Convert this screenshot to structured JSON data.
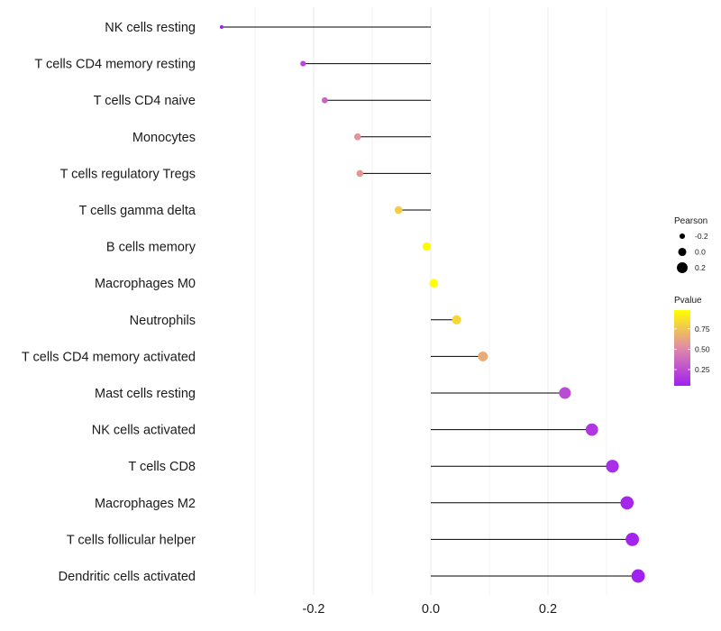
{
  "chart_data": {
    "type": "lollipop",
    "title": "",
    "xlabel": "",
    "ylabel": "",
    "xlim": [
      -0.36,
      0.36
    ],
    "xticks": [
      {
        "value": -0.2,
        "label": "-0.2"
      },
      {
        "value": 0.0,
        "label": "0.0"
      },
      {
        "value": 0.2,
        "label": "0.2"
      }
    ],
    "points": [
      {
        "category": "NK cells resting",
        "pearson": -0.357,
        "pvalue": 0.05
      },
      {
        "category": "T cells CD4 memory resting",
        "pearson": -0.218,
        "pvalue": 0.22
      },
      {
        "category": "T cells CD4 naive",
        "pearson": -0.181,
        "pvalue": 0.35
      },
      {
        "category": "Monocytes",
        "pearson": -0.125,
        "pvalue": 0.55
      },
      {
        "category": "T cells regulatory  Tregs",
        "pearson": -0.121,
        "pvalue": 0.57
      },
      {
        "category": "T cells gamma delta",
        "pearson": -0.055,
        "pvalue": 0.78
      },
      {
        "category": "B cells memory",
        "pearson": -0.007,
        "pvalue": 0.97
      },
      {
        "category": "Macrophages M0",
        "pearson": 0.005,
        "pvalue": 0.98
      },
      {
        "category": "Neutrophils",
        "pearson": 0.044,
        "pvalue": 0.82
      },
      {
        "category": "T cells CD4 memory activated",
        "pearson": 0.089,
        "pvalue": 0.65
      },
      {
        "category": "Mast cells resting",
        "pearson": 0.229,
        "pvalue": 0.24
      },
      {
        "category": "NK cells activated",
        "pearson": 0.275,
        "pvalue": 0.15
      },
      {
        "category": "T cells CD8",
        "pearson": 0.31,
        "pvalue": 0.11
      },
      {
        "category": "Macrophages M2",
        "pearson": 0.335,
        "pvalue": 0.08
      },
      {
        "category": "T cells follicular helper",
        "pearson": 0.344,
        "pvalue": 0.07
      },
      {
        "category": "Dendritic cells activated",
        "pearson": 0.354,
        "pvalue": 0.06
      }
    ],
    "legend_size": {
      "title": "Pearson",
      "entries": [
        {
          "value": -0.2,
          "label": "-0.2"
        },
        {
          "value": 0.0,
          "label": "0.0"
        },
        {
          "value": 0.2,
          "label": "0.2"
        }
      ]
    },
    "legend_color": {
      "title": "Pvalue",
      "range": [
        0.05,
        0.98
      ],
      "ticks": [
        {
          "value": 0.25,
          "label": "0.25"
        },
        {
          "value": 0.5,
          "label": "0.50"
        },
        {
          "value": 0.75,
          "label": "0.75"
        }
      ],
      "low_color": "#a020f0",
      "high_color": "#ffff00"
    },
    "colors": {
      "stem": "#000000",
      "grid": "#ebebeb",
      "text": "#1a1a1a"
    }
  }
}
